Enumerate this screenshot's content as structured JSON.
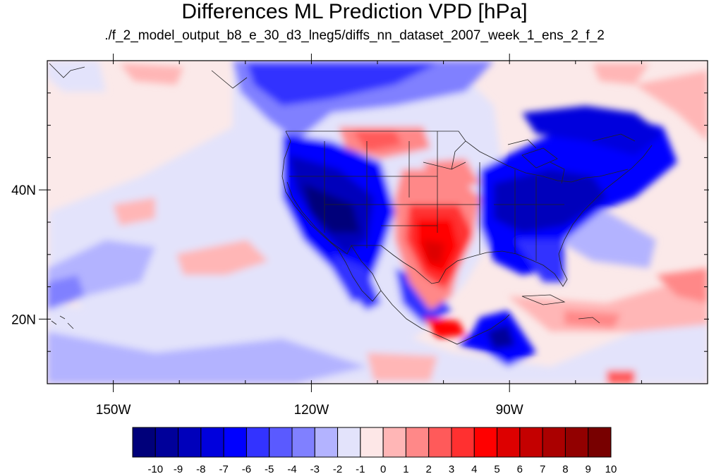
{
  "figure": {
    "title": "Differences ML Prediction VPD [hPa]",
    "subtitle": "./f_2_model_output_b8_e_30_d3_lneg5/diffs_nn_dataset_2007_week_1_ens_2_f_2"
  },
  "map": {
    "lon_range": [
      -160,
      -60
    ],
    "lat_range": [
      10,
      60
    ],
    "lon_ticks": [
      {
        "value": -150,
        "label": "150W"
      },
      {
        "value": -120,
        "label": "120W"
      },
      {
        "value": -90,
        "label": "90W"
      }
    ],
    "lat_ticks": [
      {
        "value": 40,
        "label": "40N"
      },
      {
        "value": 20,
        "label": "20N"
      }
    ]
  },
  "colorbar": {
    "levels": [
      -10,
      -9,
      -8,
      -7,
      -6,
      -5,
      -4,
      -3,
      -2,
      -1,
      0,
      1,
      2,
      3,
      4,
      5,
      6,
      7,
      8,
      9,
      10
    ],
    "labels": [
      "-10",
      "-9",
      "-8",
      "-7",
      "-6",
      "-5",
      "-4",
      "-3",
      "-2",
      "-1",
      "0",
      "1",
      "2",
      "3",
      "4",
      "5",
      "6",
      "7",
      "8",
      "9",
      "10"
    ],
    "colors": [
      "#00007a",
      "#00009a",
      "#0000bb",
      "#0000dd",
      "#0000ff",
      "#3333ff",
      "#5a5aff",
      "#8080ff",
      "#b3b3ff",
      "#e3e3fb",
      "#fde7e7",
      "#ffb6b6",
      "#ff8888",
      "#ff5a5a",
      "#ff3030",
      "#ff0000",
      "#dd0000",
      "#c40000",
      "#aa0000",
      "#920000",
      "#780000"
    ]
  }
}
